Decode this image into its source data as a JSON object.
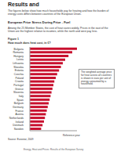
{
  "page": {
    "header": "Results and",
    "paragraph_1": "The figures below show how much households pay for heating and how the burden of energy costs differs between countries of the European Union.",
    "heading": "European Price Stress During Price - Fuel",
    "paragraph_2": "Among the 25 Member States, the cost of heat varies widely. Prices in the east of the Union are the highest relative to incomes, while the north and west pay less.",
    "figure_label": "Figure 1",
    "source": "Source: Eurostat, 2009",
    "footer": "Energy, Heat and Prices: Results of the European Survey"
  },
  "chart_data": {
    "type": "bar",
    "orientation": "horizontal",
    "title": "How much does heat cost, in €?",
    "categories": [
      "Bulgaria",
      "Romania",
      "Hungary",
      "Latvia",
      "Lithuania",
      "Slovakia",
      "Estonia",
      "Czechia",
      "Poland",
      "Croatia",
      "Portugal",
      "Greece",
      "Slovenia",
      "Italy",
      "Spain",
      "Belgium",
      "Germany",
      "France",
      "Austria",
      "Netherlands",
      "Ireland",
      "Denmark",
      "Sweden"
    ],
    "values": [
      100,
      90,
      82,
      75,
      70,
      66,
      62,
      58,
      55,
      52,
      50,
      48,
      46,
      44,
      42,
      40,
      38,
      36,
      34,
      32,
      30,
      27,
      24
    ],
    "color": "#c8102e",
    "xlim": [
      0,
      100
    ],
    "tick_labels": "y",
    "annotation": "The weighted average price for heat across all countries is shown in euro per unit of energy consumed by a household.",
    "axis_note": "Reference year"
  }
}
